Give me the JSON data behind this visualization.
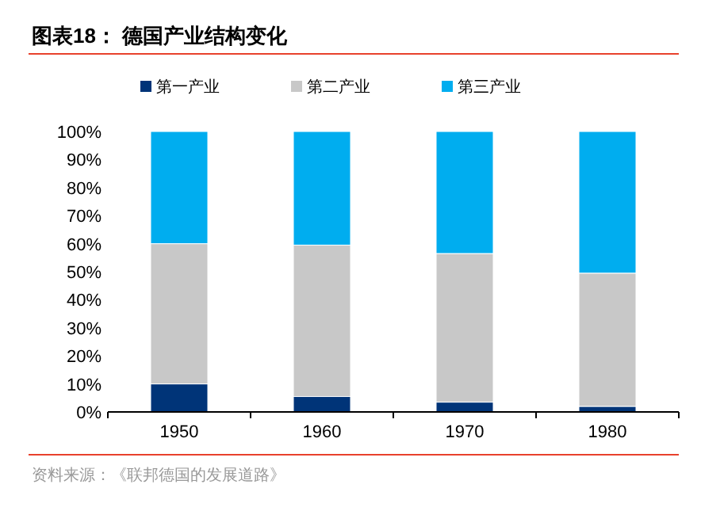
{
  "chart_data": {
    "type": "bar",
    "title": "图表18：  德国产业结构变化",
    "categories": [
      "1950",
      "1960",
      "1970",
      "1980"
    ],
    "series": [
      {
        "name": "第一产业",
        "color": "#003478",
        "values": [
          10,
          5.5,
          3.5,
          2
        ]
      },
      {
        "name": "第二产业",
        "color": "#c8c8c8",
        "values": [
          50,
          54,
          53,
          47.5
        ]
      },
      {
        "name": "第三产业",
        "color": "#00adef",
        "values": [
          40,
          40.5,
          43.5,
          50.5
        ]
      }
    ],
    "stacked": true,
    "ylim": [
      0,
      100
    ],
    "yticks": [
      {
        "value": 0,
        "label": "0%"
      },
      {
        "value": 10,
        "label": "10%"
      },
      {
        "value": 20,
        "label": "20%"
      },
      {
        "value": 30,
        "label": "30%"
      },
      {
        "value": 40,
        "label": "40%"
      },
      {
        "value": 50,
        "label": "50%"
      },
      {
        "value": 60,
        "label": "60%"
      },
      {
        "value": 70,
        "label": "70%"
      },
      {
        "value": 80,
        "label": "80%"
      },
      {
        "value": 90,
        "label": "90%"
      },
      {
        "value": 100,
        "label": "100%"
      }
    ],
    "legend": "top",
    "annotations": [
      "资料来源：《联邦德国的发展道路》"
    ]
  }
}
